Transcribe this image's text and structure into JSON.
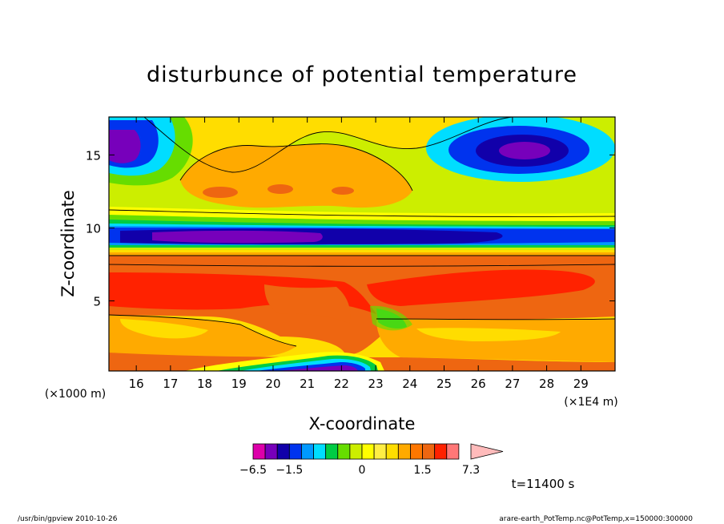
{
  "chart_data": {
    "type": "contour",
    "title": "disturbunce of potential temperature",
    "xlabel": "X-coordinate",
    "ylabel": "Z-coordinate",
    "x_unit": "(×1E4 m)",
    "y_unit": "(×1000 m)",
    "xlim": [
      15.2,
      30.0
    ],
    "ylim": [
      0.2,
      17.6
    ],
    "x_ticks": [
      "16",
      "17",
      "18",
      "19",
      "20",
      "21",
      "22",
      "23",
      "24",
      "25",
      "26",
      "27",
      "28",
      "29"
    ],
    "y_ticks": [
      "5",
      "10",
      "15"
    ],
    "time_label": "t=11400 s",
    "colorbar": {
      "labels": [
        "−6.5",
        "−1.5",
        "0",
        "1.5",
        "7.3"
      ],
      "levels": [
        -6.5,
        -4.5,
        -2.5,
        -1.5,
        -1.25,
        -1.0,
        -0.75,
        -0.5,
        -0.25,
        0,
        0.25,
        0.5,
        0.75,
        1.0,
        1.5,
        2.5,
        3.5,
        5.0,
        7.3
      ],
      "colors": [
        "#dd00aa",
        "#7700bb",
        "#1100aa",
        "#0033ee",
        "#0099ff",
        "#00ddff",
        "#00cc44",
        "#66dd00",
        "#ccee00",
        "#ffff00",
        "#ffee44",
        "#ffdd00",
        "#ffaa00",
        "#ff7700",
        "#ee6611",
        "#ff2200",
        "#ff7777",
        "#ffbbbb"
      ]
    },
    "features": [
      {
        "name": "upper-left cold core",
        "x": 15.7,
        "z": 15.8,
        "min": -6.0
      },
      {
        "name": "upper-right cold core",
        "x": 27.0,
        "z": 15.5,
        "min": -5.0
      },
      {
        "name": "tropopause cold band",
        "x_range": [
          16,
          26
        ],
        "z": 9.7,
        "min": -5.0
      },
      {
        "name": "upper warm region",
        "x": 20.5,
        "z": 13.5,
        "max": 1.5
      },
      {
        "name": "lower warm band",
        "x_range": [
          15.2,
          28.5
        ],
        "z": 6.0,
        "max": 3.0
      },
      {
        "name": "surface cold pool",
        "x": 21.5,
        "z": 0.4,
        "min": -3.0
      }
    ]
  },
  "footer": {
    "left": "/usr/bin/gpview   2010-10-26",
    "right": "arare-earth_PotTemp.nc@PotTemp,x=150000:300000"
  }
}
